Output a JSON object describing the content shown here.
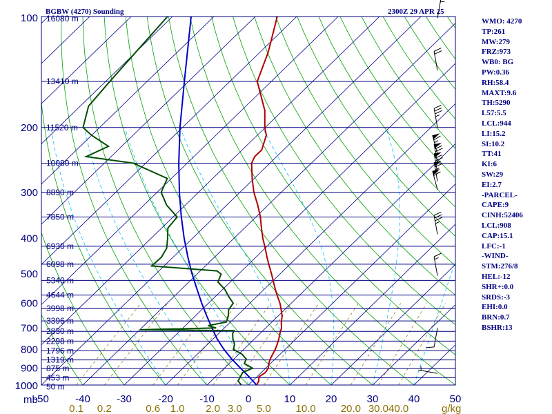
{
  "header": {
    "station_title": "BGBW (4270) Sounding",
    "datetime": "2300Z 29 APR 25"
  },
  "indices": [
    "WMO: 4270",
    "TP:261",
    "MW:279",
    "FRZ:973",
    "WB0: BG",
    "PW:0.36",
    "RH:58.4",
    "MAXT:9.6",
    "TH:5290",
    "L57:5.5",
    "LCL:944",
    "LI:15.2",
    "SI:10.2",
    "TT:41",
    "KI:6",
    "SW:29",
    "EI:2.7",
    "-PARCEL-",
    "CAPE:9",
    "CINH:52406",
    "LCL:908",
    "CAP:15.1",
    "LFC:-1",
    "-WIND-",
    "STM:276/8",
    "HEL:-12",
    "SHR+:0.0",
    "SRDS:-3",
    "EHI:0.0",
    "BRN:0.7",
    "BSHR:13"
  ],
  "colors": {
    "frame": "#000080",
    "isobar": "#000080",
    "isotherm": "#00008b",
    "dry_adiabat": "#00a000",
    "moist_adiabat": "#00bfff",
    "mixing_ratio": "#8b7000",
    "temperature": "#b00000",
    "dewpoint": "#004d00",
    "parcel": "#0000c8",
    "wind_barb": "#000000"
  },
  "chart_data": {
    "type": "skew-t log-p sounding",
    "pressure_axis_unit": "mb",
    "temperature_axis_unit": "°C",
    "pressure_range": [
      1000,
      100
    ],
    "pressure_levels": [
      1000,
      900,
      800,
      700,
      600,
      500,
      400,
      300,
      200,
      100
    ],
    "pressure_labels": [
      "1000",
      "900",
      "800",
      "700",
      "600",
      "500",
      "400",
      "300",
      "200",
      "100"
    ],
    "temperature_range": [
      -50,
      50
    ],
    "temperature_ticks": [
      -50,
      -40,
      -30,
      -20,
      -10,
      0,
      10,
      20,
      30,
      40,
      50
    ],
    "temperature_tick_labels": [
      "-50",
      "-40",
      "-30",
      "-20",
      "-10",
      "0",
      "10",
      "20",
      "30",
      "40",
      "50"
    ],
    "mixing_ratio_unit": "g/kg",
    "mixing_ratio_labels": [
      "0.1",
      "0.2",
      "0.6",
      "1.0",
      "2.0",
      "3.0",
      "5.0",
      "10.0",
      "20.0",
      "30.0",
      "40.0"
    ],
    "mixing_ratio_values": [
      0.1,
      0.2,
      0.6,
      1.0,
      2.0,
      3.0,
      5.0,
      10.0,
      20.0,
      30.0,
      40.0
    ],
    "height_labels": [
      {
        "p": 1010,
        "label": "50 m"
      },
      {
        "p": 955,
        "label": "453 m"
      },
      {
        "p": 902,
        "label": "875 m"
      },
      {
        "p": 855,
        "label": "1319 m"
      },
      {
        "p": 808,
        "label": "1796 m"
      },
      {
        "p": 760,
        "label": "2298 m"
      },
      {
        "p": 715,
        "label": "2830 m"
      },
      {
        "p": 670,
        "label": "3396 m"
      },
      {
        "p": 620,
        "label": "3998 m"
      },
      {
        "p": 570,
        "label": "4644 m"
      },
      {
        "p": 520,
        "label": "5340 m"
      },
      {
        "p": 470,
        "label": "6098 m"
      },
      {
        "p": 420,
        "label": "6930 m"
      },
      {
        "p": 350,
        "label": "7850 m"
      },
      {
        "p": 300,
        "label": "8890 m"
      },
      {
        "p": 250,
        "label": "10080 m"
      },
      {
        "p": 200,
        "label": "11520 m"
      },
      {
        "p": 150,
        "label": "13410 m"
      },
      {
        "p": 100,
        "label": "16080 m"
      }
    ],
    "temperature_profile": [
      [
        1000,
        2.0
      ],
      [
        975,
        1.5
      ],
      [
        950,
        0.5
      ],
      [
        925,
        1.0
      ],
      [
        900,
        0.6
      ],
      [
        875,
        -0.4
      ],
      [
        850,
        -1.2
      ],
      [
        825,
        -1.8
      ],
      [
        800,
        -2.4
      ],
      [
        775,
        -3.2
      ],
      [
        750,
        -4.1
      ],
      [
        725,
        -5.2
      ],
      [
        700,
        -6.2
      ],
      [
        675,
        -7.7
      ],
      [
        650,
        -9.0
      ],
      [
        625,
        -10.8
      ],
      [
        600,
        -12.7
      ],
      [
        575,
        -15.0
      ],
      [
        550,
        -17.3
      ],
      [
        525,
        -19.6
      ],
      [
        500,
        -22.0
      ],
      [
        475,
        -24.6
      ],
      [
        450,
        -27.3
      ],
      [
        425,
        -30.0
      ],
      [
        400,
        -33.0
      ],
      [
        375,
        -35.9
      ],
      [
        350,
        -38.9
      ],
      [
        325,
        -42.5
      ],
      [
        300,
        -46.6
      ],
      [
        275,
        -50.5
      ],
      [
        250,
        -54.4
      ],
      [
        240,
        -55.3
      ],
      [
        230,
        -55.3
      ],
      [
        210,
        -57.8
      ],
      [
        200,
        -60.1
      ],
      [
        180,
        -64.3
      ],
      [
        150,
        -73.4
      ],
      [
        125,
        -78.0
      ],
      [
        100,
        -84.7
      ]
    ],
    "dewpoint_profile": [
      [
        1000,
        -1.7
      ],
      [
        975,
        -3.5
      ],
      [
        950,
        -4.0
      ],
      [
        925,
        -4.5
      ],
      [
        900,
        -3.2
      ],
      [
        875,
        -6.3
      ],
      [
        850,
        -7.0
      ],
      [
        825,
        -9.2
      ],
      [
        800,
        -12.5
      ],
      [
        775,
        -13.5
      ],
      [
        750,
        -15.2
      ],
      [
        725,
        -16.6
      ],
      [
        712,
        -17.0
      ],
      [
        708,
        -40.0
      ],
      [
        700,
        -22.0
      ],
      [
        690,
        -24.5
      ],
      [
        675,
        -21.0
      ],
      [
        650,
        -22.0
      ],
      [
        625,
        -23.5
      ],
      [
        600,
        -24.0
      ],
      [
        575,
        -26.8
      ],
      [
        550,
        -29.5
      ],
      [
        525,
        -33.0
      ],
      [
        500,
        -34.2
      ],
      [
        490,
        -36.0
      ],
      [
        475,
        -53.0
      ],
      [
        450,
        -52.8
      ],
      [
        425,
        -53.8
      ],
      [
        400,
        -56.0
      ],
      [
        375,
        -58.5
      ],
      [
        350,
        -59.0
      ],
      [
        325,
        -64.5
      ],
      [
        300,
        -69.0
      ],
      [
        275,
        -71.0
      ],
      [
        250,
        -83.0
      ],
      [
        240,
        -96.0
      ],
      [
        225,
        -93.2
      ],
      [
        210,
        -100.0
      ],
      [
        200,
        -104.0
      ],
      [
        175,
        -108.0
      ],
      [
        150,
        -109.0
      ],
      [
        125,
        -110.0
      ],
      [
        100,
        -111.2
      ]
    ],
    "parcel_profile": [
      [
        1000,
        2.0
      ],
      [
        950,
        -1.9
      ],
      [
        900,
        -6.1
      ],
      [
        850,
        -10.5
      ],
      [
        800,
        -14.8
      ],
      [
        750,
        -19.0
      ],
      [
        700,
        -23.0
      ],
      [
        650,
        -27.2
      ],
      [
        600,
        -31.6
      ],
      [
        550,
        -36.2
      ],
      [
        500,
        -41.2
      ],
      [
        450,
        -46.4
      ],
      [
        400,
        -52.0
      ],
      [
        350,
        -58.0
      ],
      [
        300,
        -64.6
      ],
      [
        250,
        -72.0
      ],
      [
        200,
        -80.6
      ],
      [
        150,
        -91.0
      ],
      [
        100,
        -105.5
      ]
    ],
    "wind_barbs": [
      {
        "p": 930,
        "dir": 280,
        "speed": 5
      },
      {
        "p": 700,
        "dir": 190,
        "speed": 10
      },
      {
        "p": 505,
        "dir": 350,
        "speed": 15
      },
      {
        "p": 390,
        "dir": 350,
        "speed": 35
      },
      {
        "p": 295,
        "dir": 345,
        "speed": 60
      },
      {
        "p": 280,
        "dir": 350,
        "speed": 65
      },
      {
        "p": 265,
        "dir": 350,
        "speed": 70
      },
      {
        "p": 250,
        "dir": 350,
        "speed": 75
      },
      {
        "p": 236,
        "dir": 345,
        "speed": 65
      },
      {
        "p": 200,
        "dir": 350,
        "speed": 35
      },
      {
        "p": 140,
        "dir": 350,
        "speed": 20
      },
      {
        "p": 101,
        "dir": 10,
        "speed": 15
      }
    ]
  }
}
